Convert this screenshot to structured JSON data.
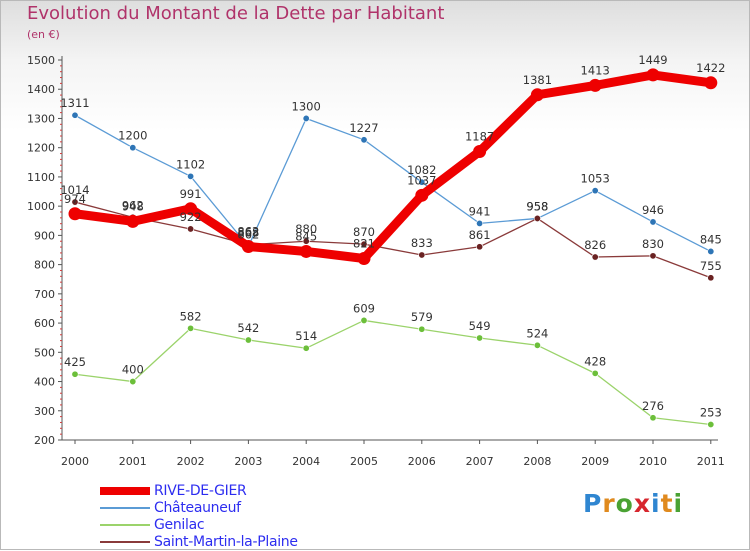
{
  "title": "Evolution du Montant de la Dette par Habitant",
  "unit": "(en €)",
  "logo": {
    "text": "Proxiti",
    "colors": [
      "#2f86d1",
      "#e08a1e",
      "#4aa233",
      "#d7262e",
      "#2f86d1",
      "#e08a1e",
      "#4aa233"
    ]
  },
  "chart_data": {
    "type": "line",
    "title": "Evolution du Montant de la Dette par Habitant",
    "subtitle": "(en €)",
    "xlabel": "",
    "ylabel": "",
    "categories": [
      "2000",
      "2001",
      "2002",
      "2003",
      "2004",
      "2005",
      "2006",
      "2007",
      "2008",
      "2009",
      "2010",
      "2011"
    ],
    "ylim": [
      200,
      1500
    ],
    "yticks": [
      200,
      300,
      400,
      500,
      600,
      700,
      800,
      900,
      1000,
      1100,
      1200,
      1300,
      1400,
      1500
    ],
    "grid": false,
    "legend": "bottom-left",
    "series": [
      {
        "name": "Châteauneuf",
        "color": "#5b9bd5",
        "marker": "#2e75b6",
        "values": [
          1311,
          1200,
          1102,
          862,
          1300,
          1227,
          1082,
          941,
          958,
          1053,
          946,
          845
        ]
      },
      {
        "name": "Genilac",
        "color": "#9bd36b",
        "marker": "#6cbf3a",
        "values": [
          425,
          400,
          582,
          542,
          514,
          609,
          579,
          549,
          524,
          428,
          276,
          253
        ]
      },
      {
        "name": "Saint-Martin-la-Plaine",
        "color": "#8a3a3a",
        "marker": "#6a2222",
        "values": [
          1014,
          962,
          922,
          868,
          880,
          870,
          833,
          861,
          958,
          826,
          830,
          755
        ]
      },
      {
        "name": "RIVE-DE-GIER",
        "color": "#ee0000",
        "marker": "#ee0000",
        "values": [
          974,
          948,
          991,
          862,
          845,
          821,
          1037,
          1187,
          1381,
          1413,
          1449,
          1422
        ]
      }
    ],
    "legend_order": [
      "RIVE-DE-GIER",
      "Châteauneuf",
      "Genilac",
      "Saint-Martin-la-Plaine"
    ]
  }
}
